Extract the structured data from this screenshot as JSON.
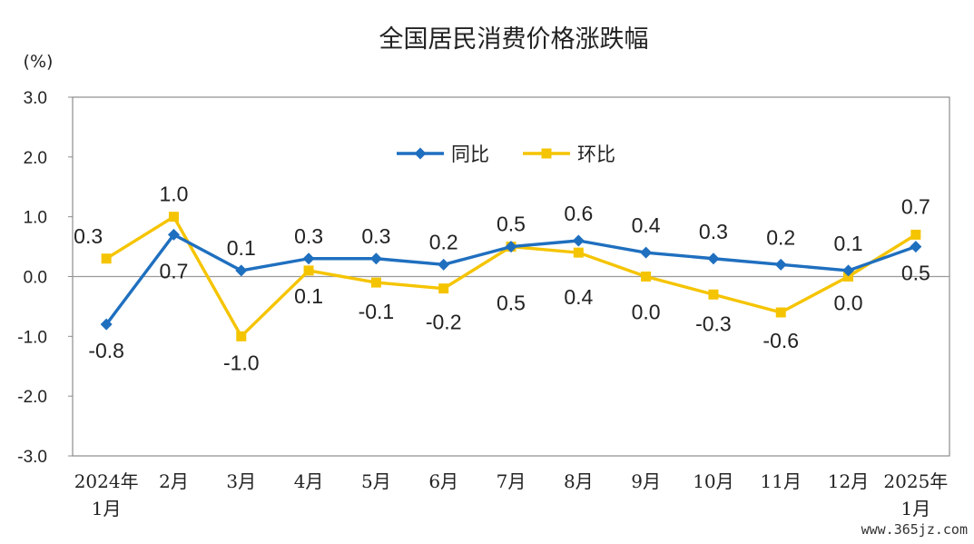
{
  "watermark": "www.365jz.com",
  "chart_data": {
    "type": "line",
    "title": "全国居民消费价格涨跌幅",
    "unit_label": "(%)",
    "ylim": [
      -3.0,
      3.0
    ],
    "yticks": [
      "3.0",
      "2.0",
      "1.0",
      "0.0",
      "-1.0",
      "-2.0",
      "-3.0"
    ],
    "grid": false,
    "legend_position": "top-center",
    "categories": [
      [
        "2024年",
        "1月"
      ],
      [
        "2月"
      ],
      [
        "3月"
      ],
      [
        "4月"
      ],
      [
        "5月"
      ],
      [
        "6月"
      ],
      [
        "7月"
      ],
      [
        "8月"
      ],
      [
        "9月"
      ],
      [
        "10月"
      ],
      [
        "11月"
      ],
      [
        "12月"
      ],
      [
        "2025年",
        "1月"
      ]
    ],
    "series": [
      {
        "name": "同比",
        "color": "#1f6fbf",
        "marker": "diamond",
        "values": [
          -0.8,
          0.7,
          0.1,
          0.3,
          0.3,
          0.2,
          0.5,
          0.6,
          0.4,
          0.3,
          0.2,
          0.1,
          0.5
        ],
        "labels": [
          "-0.8",
          "0.7",
          "0.1",
          "0.3",
          "0.3",
          "0.2",
          "0.5",
          "0.6",
          "0.4",
          "0.3",
          "0.2",
          "0.1",
          "0.5"
        ]
      },
      {
        "name": "环比",
        "color": "#f5c400",
        "marker": "square",
        "values": [
          0.3,
          1.0,
          -1.0,
          0.1,
          -0.1,
          -0.2,
          0.5,
          0.4,
          0.0,
          -0.3,
          -0.6,
          0.0,
          0.7
        ],
        "labels": [
          "0.3",
          "1.0",
          "-1.0",
          "0.1",
          "-0.1",
          "-0.2",
          "0.5",
          "0.4",
          "0.0",
          "-0.3",
          "-0.6",
          "0.0",
          "0.7"
        ]
      }
    ]
  }
}
